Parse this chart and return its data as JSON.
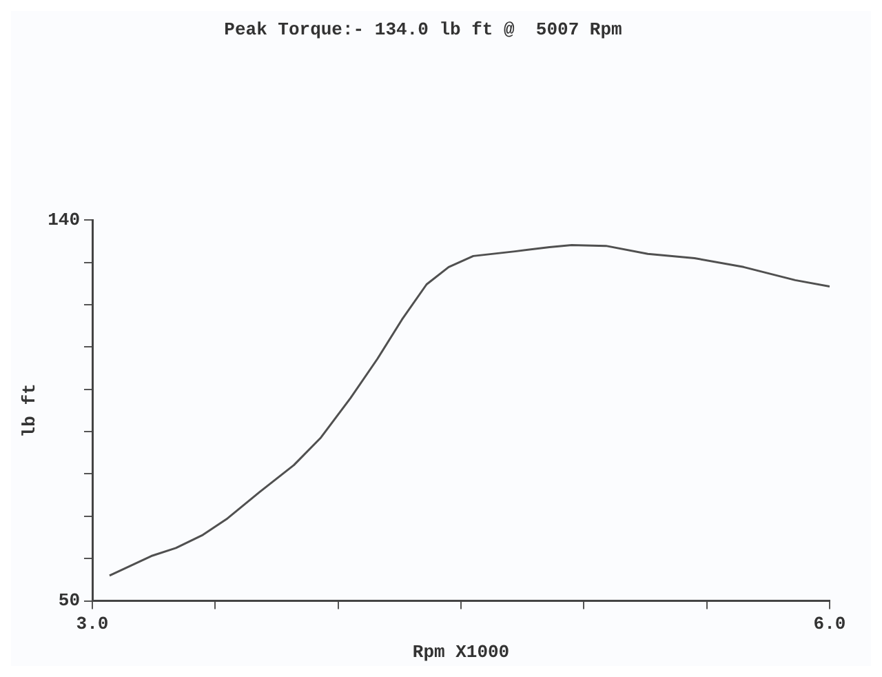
{
  "chart_data": {
    "type": "line",
    "title": "Peak Torque:- 134.0 lb ft @  5007 Rpm",
    "xlabel": "Rpm X1000",
    "ylabel": "lb ft",
    "x": [
      3.07,
      3.24,
      3.34,
      3.45,
      3.55,
      3.68,
      3.82,
      3.93,
      4.05,
      4.16,
      4.26,
      4.36,
      4.45,
      4.55,
      4.72,
      4.86,
      4.95,
      5.09,
      5.26,
      5.45,
      5.65,
      5.86,
      6.0
    ],
    "series": [
      {
        "color": "#505050",
        "values": [
          56.0,
          60.6,
          62.5,
          65.6,
          69.5,
          75.7,
          82.1,
          88.6,
          97.9,
          107.2,
          116.5,
          124.8,
          128.9,
          131.5,
          132.6,
          133.6,
          134.1,
          133.9,
          132.0,
          131.0,
          128.9,
          125.8,
          124.3
        ]
      }
    ],
    "xlim": [
      3.0,
      6.0
    ],
    "xticks": [
      {
        "value": 3.0,
        "label": "3.0"
      },
      {
        "value": 3.5,
        "label": null
      },
      {
        "value": 4.0,
        "label": null
      },
      {
        "value": 4.5,
        "label": null
      },
      {
        "value": 5.0,
        "label": null
      },
      {
        "value": 5.5,
        "label": null
      },
      {
        "value": 6.0,
        "label": "6.0"
      }
    ],
    "ylim": [
      50,
      140
    ],
    "yticks": [
      50,
      {
        "value": 60,
        "label": null
      },
      {
        "value": 70,
        "label": null
      },
      {
        "value": 80,
        "label": null
      },
      {
        "value": 90,
        "label": null
      },
      {
        "value": 100,
        "label": null
      },
      {
        "value": 110,
        "label": null
      },
      {
        "value": 120,
        "label": null
      },
      {
        "value": 130,
        "label": null
      },
      140
    ],
    "grid": false,
    "legend": false,
    "marker": "none",
    "line_style": "solid"
  }
}
